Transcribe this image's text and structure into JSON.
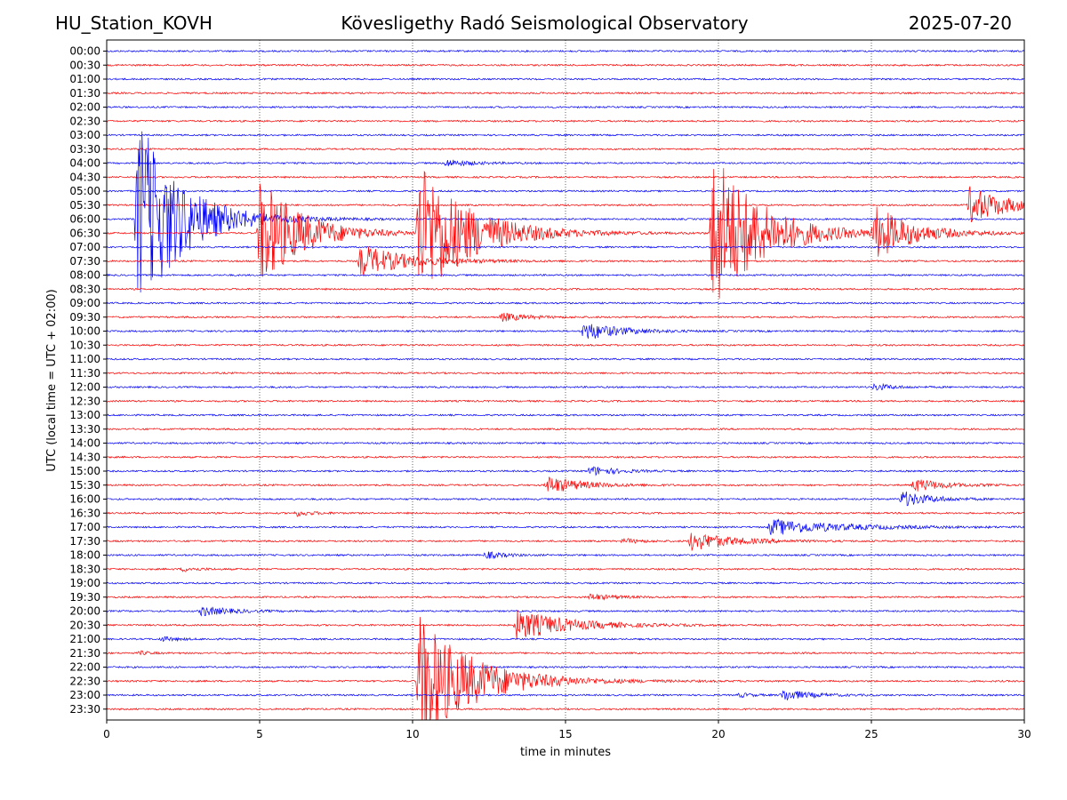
{
  "header": {
    "station": "HU_Station_KOVH",
    "title": "Kövesligethy Radó Seismological Observatory",
    "date": "2025-07-20"
  },
  "chart_data": {
    "type": "line",
    "xlabel": "time in minutes",
    "ylabel": "UTC (local time = UTC + 02:00)",
    "xlim": [
      0,
      30
    ],
    "x_ticks": [
      0,
      5,
      10,
      15,
      20,
      25,
      30
    ],
    "grid_x": true,
    "row_colors": [
      "#0000ff",
      "#ff0000"
    ],
    "rows": [
      "00:00",
      "00:30",
      "01:00",
      "01:30",
      "02:00",
      "02:30",
      "03:00",
      "03:30",
      "04:00",
      "04:30",
      "05:00",
      "05:30",
      "06:00",
      "06:30",
      "07:00",
      "07:30",
      "08:00",
      "08:30",
      "09:00",
      "09:30",
      "10:00",
      "10:30",
      "11:00",
      "11:30",
      "12:00",
      "12:30",
      "13:00",
      "13:30",
      "14:00",
      "14:30",
      "15:00",
      "15:30",
      "16:00",
      "16:30",
      "17:00",
      "17:30",
      "18:00",
      "18:30",
      "19:00",
      "19:30",
      "20:00",
      "20:30",
      "21:00",
      "21:30",
      "22:00",
      "22:30",
      "23:00",
      "23:30"
    ],
    "events": [
      {
        "row": "06:00",
        "start": 0.9,
        "amp": 16,
        "decay": 1.4
      },
      {
        "row": "06:30",
        "start": 4.9,
        "amp": 9,
        "decay": 1.3
      },
      {
        "row": "06:30",
        "start": 10.1,
        "amp": 11,
        "decay": 1.6
      },
      {
        "row": "06:30",
        "start": 19.7,
        "amp": 13,
        "decay": 1.5
      },
      {
        "row": "06:30",
        "start": 25.0,
        "amp": 4,
        "decay": 1.2
      },
      {
        "row": "05:30",
        "start": 28.1,
        "amp": 3,
        "decay": 1.2
      },
      {
        "row": "07:30",
        "start": 8.2,
        "amp": 2.5,
        "decay": 1.5
      },
      {
        "row": "04:00",
        "start": 11.0,
        "amp": 0.6,
        "decay": 0.8
      },
      {
        "row": "09:30",
        "start": 12.8,
        "amp": 0.7,
        "decay": 0.8
      },
      {
        "row": "10:00",
        "start": 15.5,
        "amp": 1.5,
        "decay": 1.1
      },
      {
        "row": "12:00",
        "start": 25.0,
        "amp": 0.6,
        "decay": 0.6
      },
      {
        "row": "15:00",
        "start": 15.7,
        "amp": 0.8,
        "decay": 0.8
      },
      {
        "row": "15:30",
        "start": 14.3,
        "amp": 1.4,
        "decay": 1.1
      },
      {
        "row": "15:30",
        "start": 26.3,
        "amp": 1.1,
        "decay": 0.9
      },
      {
        "row": "16:00",
        "start": 25.9,
        "amp": 1.3,
        "decay": 0.9
      },
      {
        "row": "16:30",
        "start": 6.1,
        "amp": 0.5,
        "decay": 0.5
      },
      {
        "row": "17:00",
        "start": 21.6,
        "amp": 1.2,
        "decay": 2.2
      },
      {
        "row": "17:30",
        "start": 19.0,
        "amp": 1.5,
        "decay": 1.3
      },
      {
        "row": "17:30",
        "start": 16.8,
        "amp": 0.4,
        "decay": 0.6
      },
      {
        "row": "18:00",
        "start": 12.3,
        "amp": 0.6,
        "decay": 0.6
      },
      {
        "row": "18:30",
        "start": 2.4,
        "amp": 0.4,
        "decay": 0.5
      },
      {
        "row": "19:30",
        "start": 15.7,
        "amp": 0.5,
        "decay": 0.8
      },
      {
        "row": "20:00",
        "start": 3.0,
        "amp": 0.8,
        "decay": 0.9
      },
      {
        "row": "20:30",
        "start": 13.3,
        "amp": 2.4,
        "decay": 1.6
      },
      {
        "row": "21:00",
        "start": 1.7,
        "amp": 0.4,
        "decay": 0.5
      },
      {
        "row": "21:30",
        "start": 1.0,
        "amp": 0.4,
        "decay": 0.3
      },
      {
        "row": "22:30",
        "start": 10.1,
        "amp": 10,
        "decay": 1.7
      },
      {
        "row": "23:00",
        "start": 22.0,
        "amp": 1.0,
        "decay": 0.8
      },
      {
        "row": "23:00",
        "start": 20.6,
        "amp": 0.4,
        "decay": 0.4
      }
    ]
  }
}
